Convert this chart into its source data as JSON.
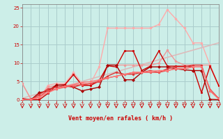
{
  "background_color": "#cceee8",
  "grid_color": "#aacccc",
  "xlabel": "Vent moyen/en rafales ( km/h )",
  "xlabel_color": "#cc0000",
  "tick_color": "#cc0000",
  "ylabel_color": "#cc0000",
  "xlim": [
    0,
    23
  ],
  "ylim": [
    0,
    26
  ],
  "yticks": [
    0,
    5,
    10,
    15,
    20,
    25
  ],
  "xticks": [
    0,
    1,
    2,
    3,
    4,
    5,
    6,
    7,
    8,
    9,
    10,
    11,
    12,
    13,
    14,
    15,
    16,
    17,
    18,
    19,
    20,
    21,
    22,
    23
  ],
  "series": [
    {
      "x": [
        0,
        1,
        2,
        3,
        4,
        5,
        6,
        7,
        8,
        9,
        10,
        11,
        12,
        13,
        14,
        15,
        16,
        17,
        18,
        19,
        20,
        21,
        22,
        23
      ],
      "y": [
        4.5,
        0.3,
        0.3,
        4.0,
        4.5,
        4.5,
        7.5,
        4.5,
        4.5,
        9.0,
        19.5,
        19.5,
        19.5,
        19.5,
        19.5,
        19.5,
        20.5,
        24.5,
        22.0,
        19.5,
        15.5,
        15.5,
        9.5,
        4.0
      ],
      "color": "#ffaaaa",
      "lw": 1.0,
      "marker": "o",
      "ms": 2.0
    },
    {
      "x": [
        0,
        23
      ],
      "y": [
        0.5,
        15.5
      ],
      "color": "#ddbbbb",
      "lw": 1.2,
      "marker": null,
      "ms": 0
    },
    {
      "x": [
        0,
        1,
        2,
        3,
        4,
        5,
        6,
        7,
        8,
        9,
        10,
        11,
        12,
        13,
        14,
        15,
        16,
        17,
        18,
        19,
        20,
        21,
        22,
        23
      ],
      "y": [
        4.5,
        0.3,
        0.3,
        3.5,
        4.0,
        4.0,
        7.0,
        4.0,
        4.0,
        5.0,
        9.5,
        9.5,
        9.5,
        9.5,
        9.5,
        9.5,
        10.0,
        13.5,
        10.5,
        9.5,
        9.5,
        9.5,
        9.5,
        4.0
      ],
      "color": "#ee9999",
      "lw": 1.0,
      "marker": "o",
      "ms": 2.0
    },
    {
      "x": [
        0,
        1,
        2,
        3,
        4,
        5,
        6,
        7,
        8,
        9,
        10,
        11,
        12,
        13,
        14,
        15,
        16,
        17,
        18,
        19,
        20,
        21,
        22,
        23
      ],
      "y": [
        0.4,
        0.1,
        0.1,
        1.8,
        4.0,
        4.2,
        6.9,
        4.0,
        4.0,
        5.2,
        9.3,
        9.0,
        13.3,
        13.3,
        8.0,
        9.2,
        13.3,
        9.2,
        9.2,
        9.2,
        9.0,
        2.0,
        9.2,
        4.0
      ],
      "color": "#cc0000",
      "lw": 1.0,
      "marker": "s",
      "ms": 2.0
    },
    {
      "x": [
        0,
        1,
        2,
        3,
        4,
        5,
        6,
        7,
        8,
        9,
        10,
        11,
        12,
        13,
        14,
        15,
        16,
        17,
        18,
        19,
        20,
        21,
        22,
        23
      ],
      "y": [
        0.1,
        0.1,
        2.0,
        2.5,
        4.1,
        4.0,
        3.5,
        2.5,
        3.0,
        3.5,
        9.5,
        9.5,
        5.5,
        5.5,
        7.5,
        9.0,
        9.0,
        9.0,
        8.5,
        8.2,
        8.0,
        8.0,
        0.2,
        0.1
      ],
      "color": "#aa0000",
      "lw": 1.0,
      "marker": "D",
      "ms": 2.0
    },
    {
      "x": [
        0,
        1,
        2,
        3,
        4,
        5,
        6,
        7,
        8,
        9,
        10,
        11,
        12,
        13,
        14,
        15,
        16,
        17,
        18,
        19,
        20,
        21,
        22,
        23
      ],
      "y": [
        0.1,
        0.1,
        1.5,
        3.0,
        3.5,
        3.8,
        3.5,
        4.2,
        4.5,
        5.0,
        6.5,
        7.5,
        7.0,
        7.0,
        7.5,
        8.0,
        7.5,
        8.5,
        9.0,
        9.0,
        9.5,
        9.5,
        2.5,
        0.5
      ],
      "color": "#dd3333",
      "lw": 1.0,
      "marker": "o",
      "ms": 1.8
    },
    {
      "x": [
        0,
        1,
        2,
        3,
        4,
        5,
        6,
        7,
        8,
        9,
        10,
        11,
        12,
        13,
        14,
        15,
        16,
        17,
        18,
        19,
        20,
        21,
        22,
        23
      ],
      "y": [
        0.1,
        0.1,
        1.0,
        2.5,
        3.0,
        3.5,
        4.0,
        4.2,
        4.5,
        5.2,
        6.0,
        6.5,
        7.0,
        7.5,
        7.5,
        7.5,
        7.5,
        8.0,
        8.5,
        8.5,
        9.0,
        9.0,
        3.0,
        0.5
      ],
      "color": "#ee5555",
      "lw": 1.0,
      "marker": "^",
      "ms": 1.8
    },
    {
      "x": [
        0,
        1,
        2,
        3,
        4,
        5,
        6,
        7,
        8,
        9,
        10,
        11,
        12,
        13,
        14,
        15,
        16,
        17,
        18,
        19,
        20,
        21,
        22,
        23
      ],
      "y": [
        0.1,
        0.1,
        0.8,
        2.0,
        3.0,
        3.8,
        4.2,
        4.8,
        5.0,
        5.5,
        6.0,
        6.5,
        7.0,
        7.5,
        7.5,
        7.8,
        8.0,
        8.0,
        8.5,
        8.5,
        9.0,
        9.0,
        2.5,
        0.3
      ],
      "color": "#ff7777",
      "lw": 1.0,
      "marker": "v",
      "ms": 1.8
    }
  ]
}
